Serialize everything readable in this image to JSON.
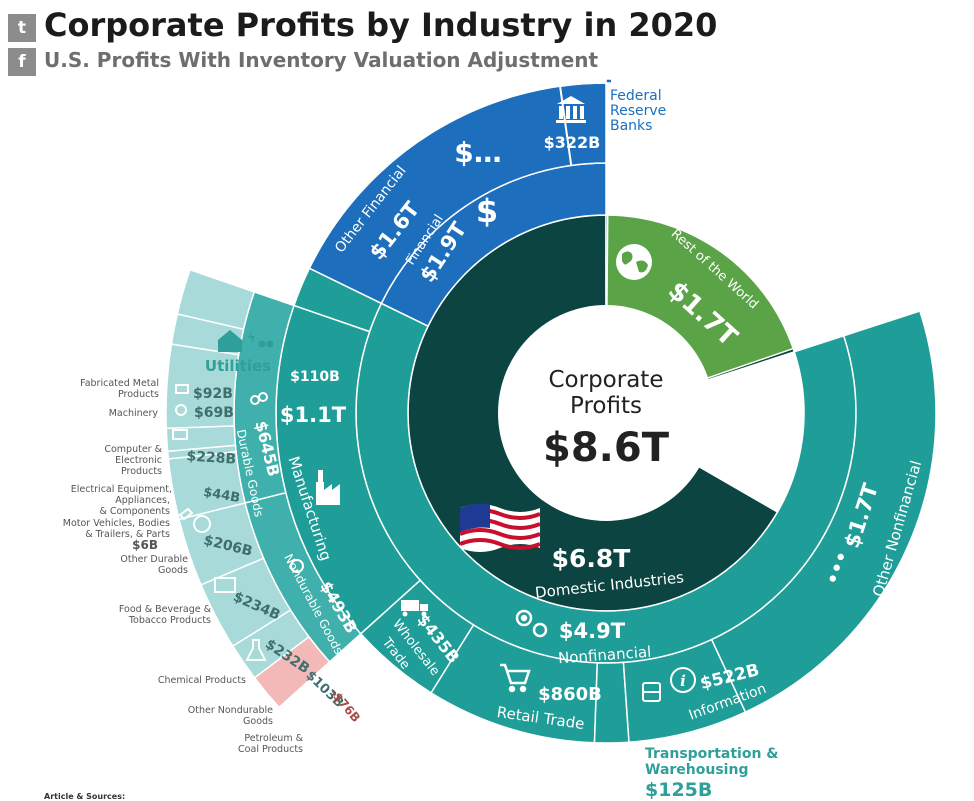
{
  "header": {
    "title": "Corporate Profits by Industry in 2020",
    "subtitle": "U.S. Profits With Inventory Valuation Adjustment"
  },
  "share": {
    "twitter_icon": "twitter-icon",
    "facebook_icon": "facebook-icon"
  },
  "footer": {
    "text": "Article & Sources:"
  },
  "colors": {
    "domestic": "#0b4440",
    "world": "#5aa347",
    "financial": "#1d6fbd",
    "nonfinancial": "#1f9d98",
    "utilities": "#3fb0ab",
    "outer_light": "#a7dad8",
    "petroleum": "#f3b8b8"
  },
  "chart_data": {
    "type": "sunburst",
    "total": {
      "label": "Corporate Profits",
      "value": "$8.6T"
    },
    "levels": [
      {
        "name": "Domestic Industries",
        "value": "$6.8T",
        "value_num": 6.8
      },
      {
        "name": "Rest of the World",
        "value": "$1.7T",
        "value_num": 1.7
      },
      {
        "name": "Financial",
        "value": "$1.9T",
        "value_num": 1.9,
        "parent": "Domestic Industries"
      },
      {
        "name": "Nonfinancial",
        "value": "$4.9T",
        "value_num": 4.9,
        "parent": "Domestic Industries"
      },
      {
        "name": "Federal Reserve Banks",
        "value": "$322B",
        "value_num": 322,
        "parent": "Financial"
      },
      {
        "name": "Other Financial",
        "value": "$1.6T",
        "value_num": 1600,
        "parent": "Financial"
      },
      {
        "name": "Utilities",
        "value": "$110B",
        "value_num": 110,
        "parent": "Nonfinancial"
      },
      {
        "name": "Manufacturing",
        "value": "$1.1T",
        "value_num": 1100,
        "parent": "Nonfinancial"
      },
      {
        "name": "Wholesale Trade",
        "value": "$435B",
        "value_num": 435,
        "parent": "Nonfinancial"
      },
      {
        "name": "Retail Trade",
        "value": "$860B",
        "value_num": 860,
        "parent": "Nonfinancial"
      },
      {
        "name": "Transportation & Warehousing",
        "value": "$125B",
        "value_num": 125,
        "parent": "Nonfinancial"
      },
      {
        "name": "Information",
        "value": "$522B",
        "value_num": 522,
        "parent": "Nonfinancial"
      },
      {
        "name": "Other Nonfinancial",
        "value": "$1.7T",
        "value_num": 1700,
        "parent": "Nonfinancial"
      },
      {
        "name": "Durable Goods",
        "value": "$645B",
        "value_num": 645,
        "parent": "Manufacturing"
      },
      {
        "name": "Nondurable Goods",
        "value": "$493B",
        "value_num": 493,
        "parent": "Manufacturing"
      },
      {
        "name": "Fabricated Metal Products",
        "value": "$92B",
        "value_num": 92,
        "parent": "Durable Goods"
      },
      {
        "name": "Machinery",
        "value": "$69B",
        "value_num": 69,
        "parent": "Durable Goods"
      },
      {
        "name": "Computer & Electronic Products",
        "value": "$228B",
        "value_num": 228,
        "parent": "Durable Goods"
      },
      {
        "name": "Electrical Equipment, Appliances, & Components",
        "value": "$44B",
        "value_num": 44,
        "parent": "Durable Goods"
      },
      {
        "name": "Motor Vehicles, Bodies & Trailers, & Parts",
        "value": "$6B",
        "value_num": 6,
        "parent": "Durable Goods"
      },
      {
        "name": "Other Durable Goods",
        "value": "$206B",
        "value_num": 206,
        "parent": "Durable Goods"
      },
      {
        "name": "Food & Beverage & Tobacco Products",
        "value": "$234B",
        "value_num": 234,
        "parent": "Nondurable Goods"
      },
      {
        "name": "Chemical Products",
        "value": "$232B",
        "value_num": 232,
        "parent": "Nondurable Goods"
      },
      {
        "name": "Other Nondurable Goods",
        "value": "$103B",
        "value_num": 103,
        "parent": "Nondurable Goods"
      },
      {
        "name": "Petroleum & Coal Products",
        "value": "-$76B",
        "value_num": -76,
        "parent": "Nondurable Goods"
      }
    ],
    "text": {
      "center_label_line1": "Corporate",
      "center_label_line2": "Profits",
      "center_value": "$8.6T",
      "domestic_label": "Domestic Industries",
      "domestic_value": "$6.8T",
      "world_label": "Rest of the World",
      "world_value": "$1.7T",
      "financial_label": "Financial",
      "financial_value": "$1.9T",
      "nonfinancial_label": "Nonfinancial",
      "nonfinancial_value": "$4.9T",
      "frb_label_1": "Federal",
      "frb_label_2": "Reserve",
      "frb_label_3": "Banks",
      "frb_value": "$322B",
      "other_fin_label": "Other Financial",
      "other_fin_value": "$1.6T",
      "utilities_label": "Utilities",
      "utilities_value": "$110B",
      "manufacturing_label": "Manufacturing",
      "manufacturing_value": "$1.1T",
      "wholesale_label_1": "Wholesale",
      "wholesale_label_2": "Trade",
      "wholesale_value": "$435B",
      "retail_label": "Retail Trade",
      "retail_value": "$860B",
      "transport_label_1": "Transportation &",
      "transport_label_2": "Warehousing",
      "transport_value": "$125B",
      "information_label": "Information",
      "information_value": "$522B",
      "other_nonfin_label": "Other Nonfinancial",
      "other_nonfin_value": "$1.7T",
      "durable_label": "Durable Goods",
      "durable_value": "$645B",
      "nondurable_label": "Nondurable Goods",
      "nondurable_value": "$493B",
      "fab_label_1": "Fabricated Metal",
      "fab_label_2": "Products",
      "fab_value": "$92B",
      "mach_label": "Machinery",
      "mach_value": "$69B",
      "comp_label_1": "Computer &",
      "comp_label_2": "Electronic",
      "comp_label_3": "Products",
      "comp_value": "$228B",
      "elec_label_1": "Electrical Equipment,",
      "elec_label_2": "Appliances,",
      "elec_label_3": "& Components",
      "elec_value": "$44B",
      "motor_label_1": "Motor Vehicles, Bodies",
      "motor_label_2": "& Trailers, & Parts",
      "motor_value": "$6B",
      "odg_label_1": "Other Durable",
      "odg_label_2": "Goods",
      "odg_value": "$206B",
      "food_label_1": "Food & Beverage &",
      "food_label_2": "Tobacco Products",
      "food_value": "$234B",
      "chem_label": "Chemical Products",
      "chem_value": "$232B",
      "ond_label_1": "Other Nondurable",
      "ond_label_2": "Goods",
      "ond_value": "$103B",
      "pet_label_1": "Petroleum &",
      "pet_label_2": "Coal Products",
      "pet_value": "-$76B",
      "other_fin_icon": "$…",
      "financial_icon": "$",
      "other_nonfin_icon": "•••"
    }
  }
}
